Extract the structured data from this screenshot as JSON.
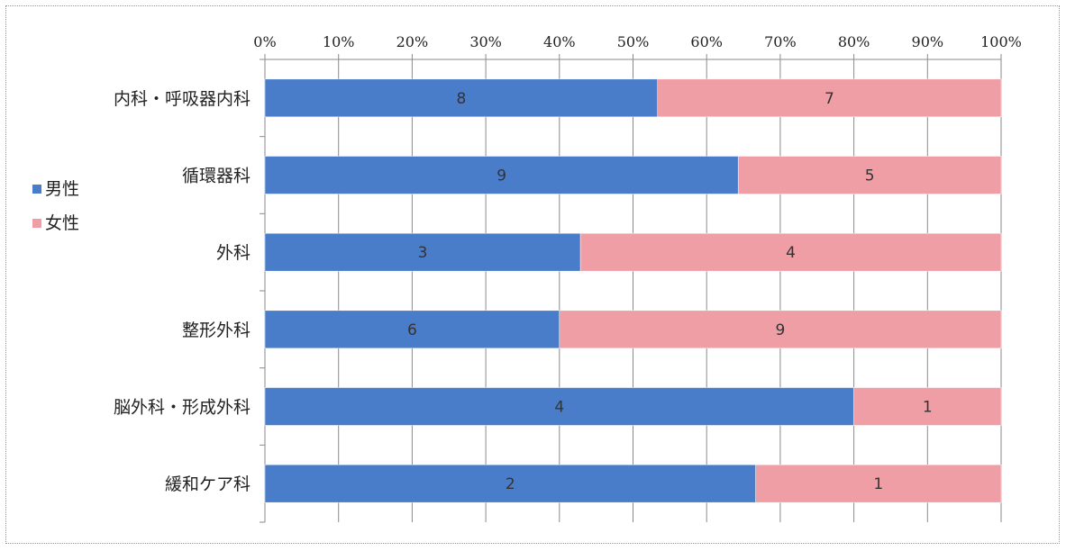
{
  "chart_data": {
    "type": "bar",
    "orientation": "horizontal",
    "stacked": "percent",
    "categories": [
      "内科・呼吸器内科",
      "循環器科",
      "外科",
      "整形外科",
      "脳外科・形成外科",
      "緩和ケア科"
    ],
    "series": [
      {
        "name": "男性",
        "values": [
          8,
          9,
          3,
          6,
          4,
          2
        ],
        "color": "#4a7dc9"
      },
      {
        "name": "女性",
        "values": [
          7,
          5,
          4,
          9,
          1,
          1
        ],
        "color": "#ef9ea6"
      }
    ],
    "xlim": [
      0,
      100
    ],
    "x_ticks": [
      "0%",
      "10%",
      "20%",
      "30%",
      "40%",
      "50%",
      "60%",
      "70%",
      "80%",
      "90%",
      "100%"
    ],
    "axis_position": "top",
    "grid": true,
    "legend_position": "left",
    "title": "",
    "xlabel": "",
    "ylabel": ""
  }
}
